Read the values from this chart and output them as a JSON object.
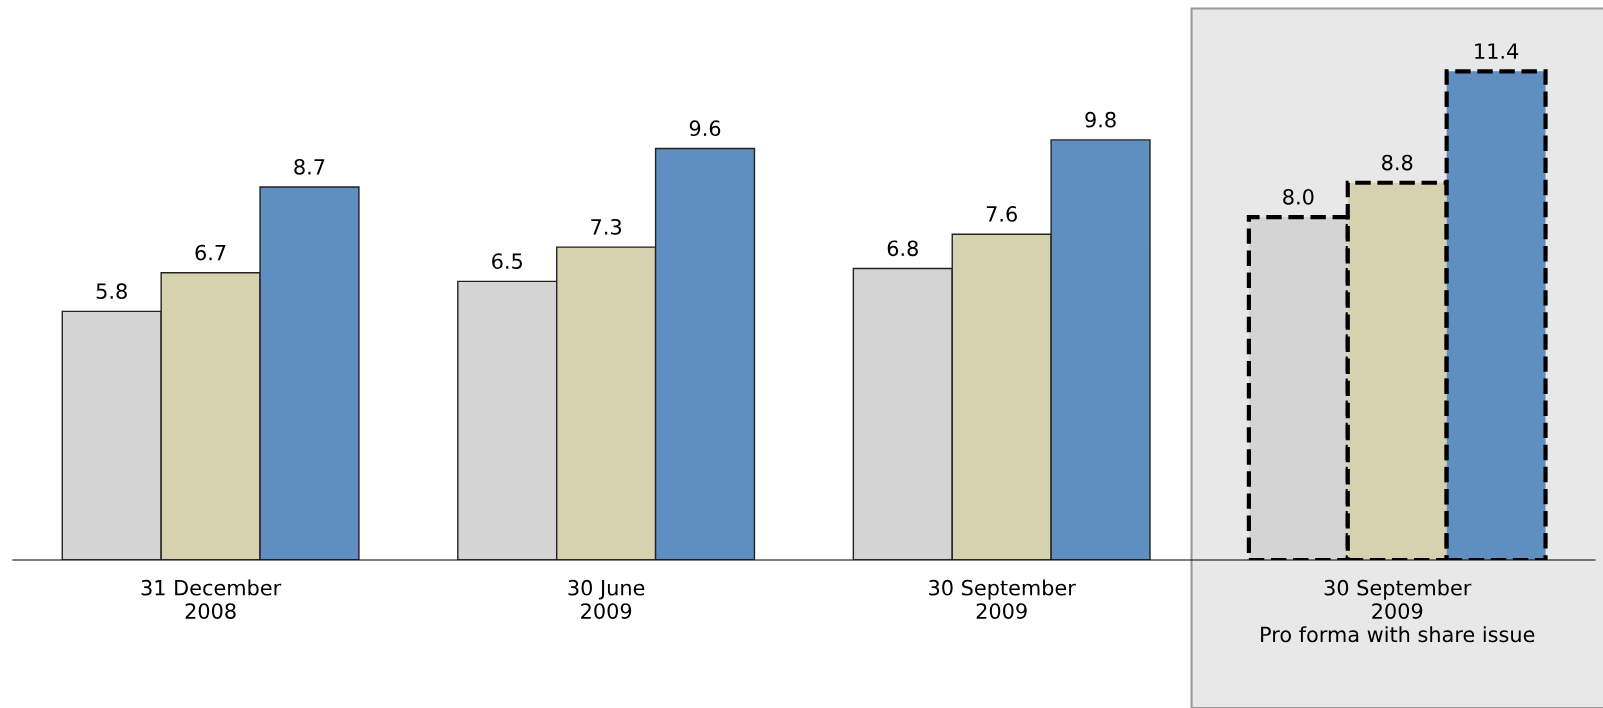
{
  "chart_data": {
    "type": "bar",
    "categories": [
      "31 December\n2008",
      "30 June\n2009",
      "30 September\n2009",
      "30 September\n2009\nPro forma with share issue"
    ],
    "series": [
      {
        "color": "#d4d4d4",
        "values": [
          5.8,
          6.5,
          6.8,
          8.0
        ],
        "value_labels": [
          "5.8",
          "6.5",
          "6.8",
          "8.0"
        ]
      },
      {
        "color": "#d6d2b0",
        "values": [
          6.7,
          7.3,
          7.6,
          8.8
        ],
        "value_labels": [
          "6.7",
          "7.3",
          "7.6",
          "8.8"
        ]
      },
      {
        "color": "#5f8fc0",
        "values": [
          8.7,
          9.6,
          9.8,
          11.4
        ],
        "value_labels": [
          "8.7",
          "9.6",
          "9.8",
          "11.4"
        ]
      }
    ],
    "bands": [
      {
        "axis": "x",
        "from": "30 September\n2009\nPro forma with share issue",
        "to": "30 September\n2009\nPro forma with share issue",
        "color": "#e8e8e8"
      }
    ],
    "grid": false,
    "legend": false
  }
}
